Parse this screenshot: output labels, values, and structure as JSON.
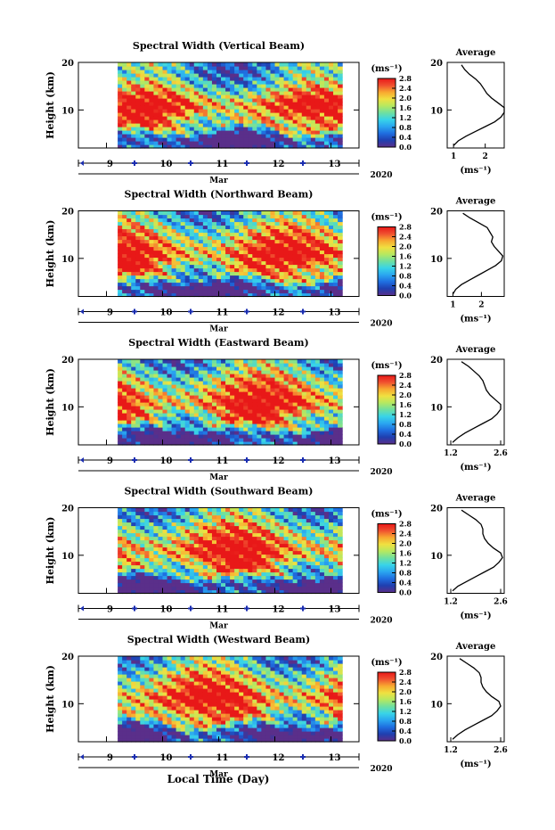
{
  "colors": {
    "colorbar_stops": [
      "#5a2f8a",
      "#1f3fb0",
      "#1f6ee0",
      "#2aa6f0",
      "#38d4e8",
      "#6fe0a0",
      "#b6e860",
      "#f0e040",
      "#f8a830",
      "#f05030",
      "#e81818"
    ],
    "axis": "#000000",
    "tick_marker": "#1a2db0",
    "average_line": "#000000"
  },
  "figure": {
    "xlabel": "Local Time (Day)",
    "date_label": "Mar",
    "year_label": "2020",
    "average_title": "Average",
    "colorbar_unit": "(ms⁻¹)",
    "average_xlabel": "(ms⁻¹)"
  },
  "chart_data": [
    {
      "type": "heatmap",
      "title": "Spectral Width (Vertical Beam)",
      "ylabel": "Height (km)",
      "xlim": [
        8.5,
        13.5
      ],
      "ylim": [
        2,
        20
      ],
      "x_ticks": [
        "9",
        "10",
        "11",
        "12",
        "13"
      ],
      "y_ticks": [
        "10",
        "20"
      ],
      "data_start": 9.2,
      "data_end": 13.2,
      "colorbar_ticks": [
        "0.0",
        "0.4",
        "0.8",
        "1.2",
        "1.6",
        "2.0",
        "2.4",
        "2.8"
      ],
      "colorbar_range": [
        0,
        2.8
      ],
      "average": {
        "xlim": [
          0.8,
          2.6
        ],
        "x_ticks": [
          "1",
          "2"
        ],
        "profile_heights": [
          2.5,
          3.5,
          4.5,
          5.5,
          6.5,
          7.5,
          8.5,
          9.5,
          10.5,
          11.5,
          12.5,
          13.5,
          14.5,
          15.5,
          16.5,
          17.5,
          18.5,
          19.5
        ],
        "profile_values": [
          1.0,
          1.15,
          1.4,
          1.7,
          2.0,
          2.3,
          2.5,
          2.6,
          2.6,
          2.4,
          2.2,
          2.05,
          1.95,
          1.85,
          1.7,
          1.5,
          1.35,
          1.25
        ]
      }
    },
    {
      "type": "heatmap",
      "title": "Spectral Width (Northward Beam)",
      "ylabel": "Height (km)",
      "xlim": [
        8.5,
        13.5
      ],
      "ylim": [
        2,
        20
      ],
      "x_ticks": [
        "9",
        "10",
        "11",
        "12",
        "13"
      ],
      "y_ticks": [
        "10",
        "20"
      ],
      "data_start": 9.2,
      "data_end": 13.2,
      "colorbar_ticks": [
        "0.0",
        "0.4",
        "0.8",
        "1.2",
        "1.6",
        "2.0",
        "2.4",
        "2.8"
      ],
      "colorbar_range": [
        0,
        2.8
      ],
      "average": {
        "xlim": [
          0.8,
          2.8
        ],
        "x_ticks": [
          "1",
          "2"
        ],
        "profile_heights": [
          2.5,
          3.5,
          4.5,
          5.5,
          6.5,
          7.5,
          8.5,
          9.5,
          10.5,
          11.5,
          12.5,
          13.5,
          14.5,
          15.5,
          16.5,
          17.5,
          18.5,
          19.5
        ],
        "profile_values": [
          1.0,
          1.1,
          1.3,
          1.6,
          1.9,
          2.2,
          2.5,
          2.7,
          2.75,
          2.6,
          2.45,
          2.35,
          2.4,
          2.3,
          2.2,
          1.9,
          1.6,
          1.35
        ]
      }
    },
    {
      "type": "heatmap",
      "title": "Spectral Width (Eastward Beam)",
      "ylabel": "Height (km)",
      "xlim": [
        8.5,
        13.5
      ],
      "ylim": [
        2,
        20
      ],
      "x_ticks": [
        "9",
        "10",
        "11",
        "12",
        "13"
      ],
      "y_ticks": [
        "10",
        "20"
      ],
      "data_start": 9.2,
      "data_end": 13.2,
      "colorbar_ticks": [
        "0.0",
        "0.4",
        "0.8",
        "1.2",
        "1.6",
        "2.0",
        "2.4",
        "2.8"
      ],
      "colorbar_range": [
        0,
        2.8
      ],
      "average": {
        "xlim": [
          1.1,
          2.7
        ],
        "x_ticks": [
          "1.2",
          "2.6"
        ],
        "profile_heights": [
          2.5,
          3.5,
          4.5,
          5.5,
          6.5,
          7.5,
          8.5,
          9.5,
          10.5,
          11.5,
          12.5,
          13.5,
          14.5,
          15.5,
          16.5,
          17.5,
          18.5,
          19.5
        ],
        "profile_values": [
          1.25,
          1.4,
          1.6,
          1.85,
          2.1,
          2.35,
          2.5,
          2.6,
          2.6,
          2.45,
          2.3,
          2.2,
          2.15,
          2.1,
          2.0,
          1.85,
          1.7,
          1.5
        ]
      }
    },
    {
      "type": "heatmap",
      "title": "Spectral Width (Southward Beam)",
      "ylabel": "Height (km)",
      "xlim": [
        8.5,
        13.5
      ],
      "ylim": [
        2,
        20
      ],
      "x_ticks": [
        "9",
        "10",
        "11",
        "12",
        "13"
      ],
      "y_ticks": [
        "10",
        "20"
      ],
      "data_start": 9.2,
      "data_end": 13.2,
      "colorbar_ticks": [
        "0.0",
        "0.4",
        "0.8",
        "1.2",
        "1.6",
        "2.0",
        "2.4",
        "2.8"
      ],
      "colorbar_range": [
        0,
        2.8
      ],
      "average": {
        "xlim": [
          1.1,
          2.7
        ],
        "x_ticks": [
          "1.2",
          "2.6"
        ],
        "profile_heights": [
          2.5,
          3.5,
          4.5,
          5.5,
          6.5,
          7.5,
          8.5,
          9.5,
          10.5,
          11.5,
          12.5,
          13.5,
          14.5,
          15.5,
          16.5,
          17.5,
          18.5,
          19.5
        ],
        "profile_values": [
          1.25,
          1.4,
          1.65,
          1.9,
          2.15,
          2.4,
          2.55,
          2.65,
          2.6,
          2.4,
          2.25,
          2.15,
          2.1,
          2.1,
          2.05,
          1.9,
          1.7,
          1.5
        ]
      }
    },
    {
      "type": "heatmap",
      "title": "Spectral Width (Westward Beam)",
      "ylabel": "Height (km)",
      "xlim": [
        8.5,
        13.5
      ],
      "ylim": [
        2,
        20
      ],
      "x_ticks": [
        "9",
        "10",
        "11",
        "12",
        "13"
      ],
      "y_ticks": [
        "10",
        "20"
      ],
      "data_start": 9.2,
      "data_end": 13.2,
      "colorbar_ticks": [
        "0.0",
        "0.4",
        "0.8",
        "1.2",
        "1.6",
        "2.0",
        "2.4",
        "2.8"
      ],
      "colorbar_range": [
        0,
        2.8
      ],
      "average": {
        "xlim": [
          1.1,
          2.7
        ],
        "x_ticks": [
          "1.2",
          "2.6"
        ],
        "profile_heights": [
          2.5,
          3.5,
          4.5,
          5.5,
          6.5,
          7.5,
          8.5,
          9.5,
          10.5,
          11.5,
          12.5,
          13.5,
          14.5,
          15.5,
          16.5,
          17.5,
          18.5,
          19.5
        ],
        "profile_values": [
          1.25,
          1.4,
          1.6,
          1.85,
          2.1,
          2.35,
          2.5,
          2.6,
          2.55,
          2.35,
          2.2,
          2.1,
          2.05,
          2.05,
          2.0,
          1.85,
          1.65,
          1.45
        ]
      }
    }
  ]
}
